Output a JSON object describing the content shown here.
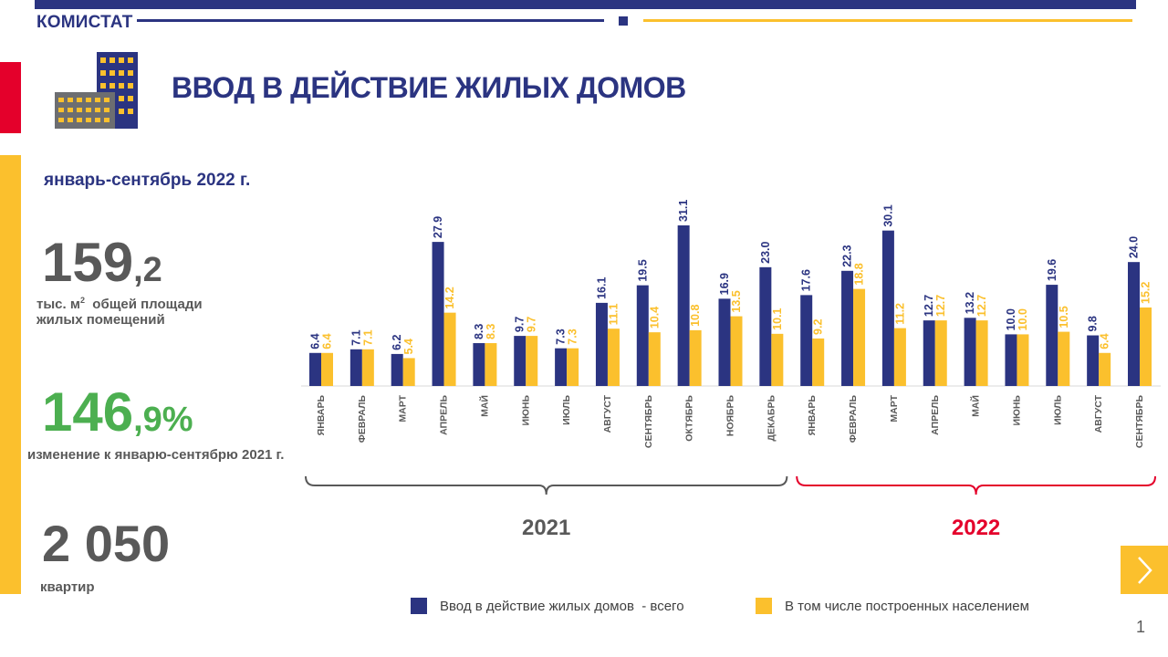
{
  "brand": "КОМИСТАТ",
  "title": "ВВОД В ДЕЙСТВИЕ ЖИЛЫХ ДОМОВ",
  "period": "январь-сентябрь 2022 г.",
  "kpis": [
    {
      "big": "159",
      "small": ",2",
      "label_line1_pre": "тыс. м",
      "label_sup": "2",
      "label_line1_post": "  общей площади",
      "label_line2": "жилых помещений"
    },
    {
      "big": "146",
      "small": ",9%",
      "label": "изменение к январю-сентябрю 2021 г."
    },
    {
      "big": "2 050",
      "label": "квартир"
    }
  ],
  "colors": {
    "navy": "#2b3481",
    "yellow": "#fbc02d",
    "red": "#e4002b",
    "green": "#4caf50",
    "gray": "#595959"
  },
  "icons": {
    "building": "building-icon",
    "next": "chevron-right-icon"
  },
  "page_number": "1",
  "chart_data": {
    "type": "bar",
    "categories": [
      "ЯНВАРЬ",
      "ФЕВРАЛЬ",
      "МАРТ",
      "АПРЕЛЬ",
      "МАЙ",
      "ИЮНЬ",
      "ИЮЛЬ",
      "АВГУСТ",
      "СЕНТЯБРЬ",
      "ОКТЯБРЬ",
      "НОЯБРЬ",
      "ДЕКАБРЬ",
      "ЯНВАРЬ",
      "ФЕВРАЛЬ",
      "МАРТ",
      "АПРЕЛЬ",
      "МАЙ",
      "ИЮНЬ",
      "ИЮЛЬ",
      "АВГУСТ",
      "СЕНТЯБРЬ"
    ],
    "series": [
      {
        "name": "Ввод в действие жилых домов  - всего",
        "color": "#2b3481",
        "values": [
          6.4,
          7.1,
          6.2,
          27.9,
          8.3,
          9.7,
          7.3,
          16.1,
          19.5,
          31.1,
          16.9,
          23.0,
          17.6,
          22.3,
          30.1,
          12.7,
          13.2,
          10.0,
          19.6,
          9.8,
          24.0
        ],
        "labels": [
          "6.4",
          "7.1",
          "6.2",
          "27.9",
          "8.3",
          "9.7",
          "7.3",
          "16.1",
          "19.5",
          "31.1",
          "16.9",
          "23.0",
          "17.6",
          "22.3",
          "30.1",
          "12.7",
          "13.2",
          "10.0",
          "19.6",
          "9.8",
          "24.0"
        ]
      },
      {
        "name": "В том числе построенных населением",
        "color": "#fbc02d",
        "values": [
          6.4,
          7.1,
          5.4,
          14.2,
          8.3,
          9.7,
          7.3,
          11.1,
          10.4,
          10.8,
          13.5,
          10.1,
          9.2,
          18.8,
          11.2,
          12.7,
          12.7,
          10.0,
          10.5,
          6.4,
          15.2
        ],
        "labels": [
          "6.4",
          "7.1",
          "5.4",
          "14.2",
          "8.3",
          "9.7",
          "7.3",
          "11.1",
          "10.4",
          "10.8",
          "13.5",
          "10.1",
          "9.2",
          "18.8",
          "11.2",
          "12.7",
          "12.7",
          "10.0",
          "10.5",
          "6.4",
          "15.2"
        ]
      }
    ],
    "groups": [
      {
        "label": "2021",
        "months": 12,
        "color": "#595959"
      },
      {
        "label": "2022",
        "months": 9,
        "color": "#e4002b"
      }
    ],
    "ylim": [
      0,
      31.1
    ],
    "grid": false,
    "legend_position": "bottom"
  }
}
